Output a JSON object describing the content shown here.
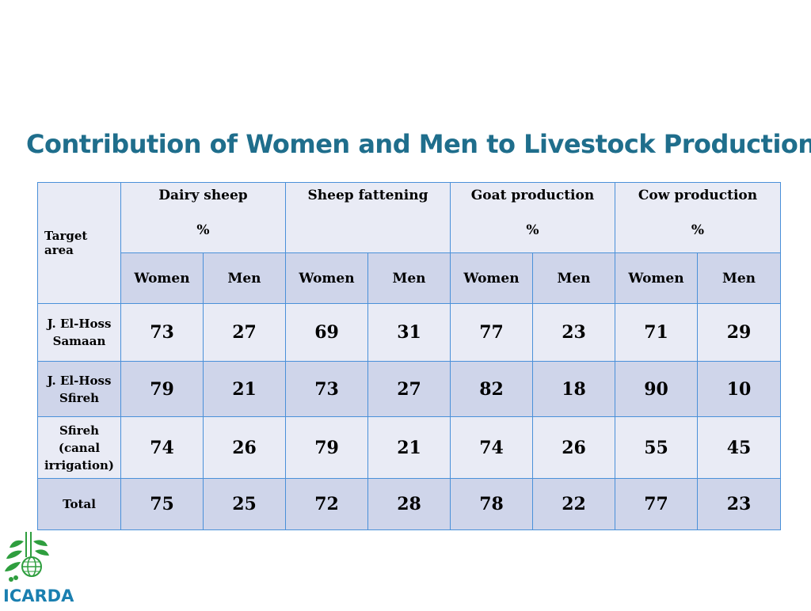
{
  "title": "Contribution of Women and Men to Livestock Production",
  "table": {
    "target_header": "Target area",
    "groups": [
      {
        "name": "Dairy sheep",
        "unit": "%"
      },
      {
        "name": "Sheep fattening",
        "unit": ""
      },
      {
        "name": "Goat production",
        "unit": "%"
      },
      {
        "name": "Cow production",
        "unit": "%"
      }
    ],
    "subheaders": [
      "Women",
      "Men",
      "Women",
      "Men",
      "Women",
      "Men",
      "Women",
      "Men"
    ],
    "rows": [
      {
        "label": [
          "J. El-Hoss",
          "Samaan"
        ],
        "values": [
          "73",
          "27",
          "69",
          "31",
          "77",
          "23",
          "71",
          "29"
        ]
      },
      {
        "label": [
          "J. El-Hoss",
          "Sfireh"
        ],
        "values": [
          "79",
          "21",
          "73",
          "27",
          "82",
          "18",
          "90",
          "10"
        ]
      },
      {
        "label": [
          "Sfireh",
          "(canal",
          "irrigation)"
        ],
        "values": [
          "74",
          "26",
          "79",
          "21",
          "74",
          "26",
          "55",
          "45"
        ]
      },
      {
        "label": [
          "Total"
        ],
        "values": [
          "75",
          "25",
          "72",
          "28",
          "78",
          "22",
          "77",
          "23"
        ]
      }
    ]
  },
  "logo": {
    "text": "ICARDA",
    "icon": "wheat-globe-logo-icon",
    "color": "#1a7fb0"
  }
}
